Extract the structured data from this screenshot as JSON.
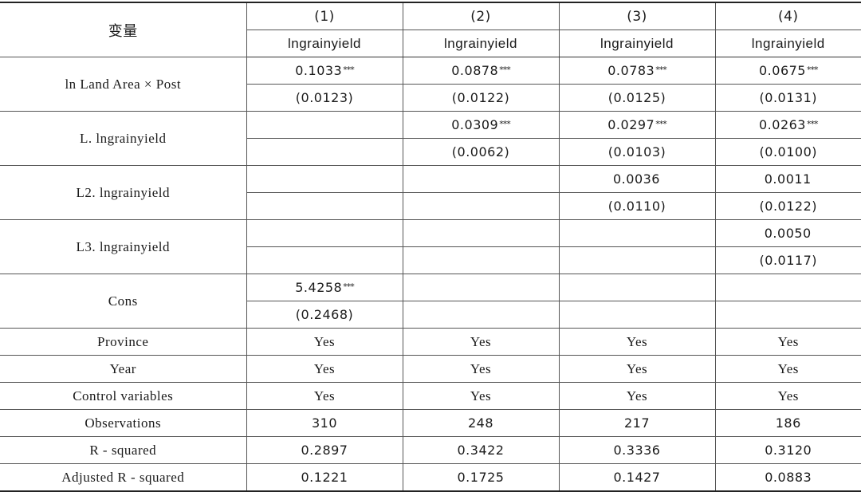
{
  "header": {
    "variable_label": "变量",
    "columns": [
      {
        "number": "(1)",
        "dependent": "lngrainyield"
      },
      {
        "number": "(2)",
        "dependent": "lngrainyield"
      },
      {
        "number": "(3)",
        "dependent": "lngrainyield"
      },
      {
        "number": "(4)",
        "dependent": "lngrainyield"
      }
    ]
  },
  "coefficients": [
    {
      "name": "ln Land Area × Post",
      "coef": [
        {
          "value": "0.1033",
          "stars": "***"
        },
        {
          "value": "0.0878",
          "stars": "***"
        },
        {
          "value": "0.0783",
          "stars": "***"
        },
        {
          "value": "0.0675",
          "stars": "***"
        }
      ],
      "se": [
        "(0.0123)",
        "(0.0122)",
        "(0.0125)",
        "(0.0131)"
      ]
    },
    {
      "name": "L. lngrainyield",
      "coef": [
        {
          "value": "",
          "stars": ""
        },
        {
          "value": "0.0309",
          "stars": "***"
        },
        {
          "value": "0.0297",
          "stars": "***"
        },
        {
          "value": "0.0263",
          "stars": "***"
        }
      ],
      "se": [
        "",
        "(0.0062)",
        "(0.0103)",
        "(0.0100)"
      ]
    },
    {
      "name": "L2. lngrainyield",
      "coef": [
        {
          "value": "",
          "stars": ""
        },
        {
          "value": "",
          "stars": ""
        },
        {
          "value": "0.0036",
          "stars": ""
        },
        {
          "value": "0.0011",
          "stars": ""
        }
      ],
      "se": [
        "",
        "",
        "(0.0110)",
        "(0.0122)"
      ]
    },
    {
      "name": "L3. lngrainyield",
      "coef": [
        {
          "value": "",
          "stars": ""
        },
        {
          "value": "",
          "stars": ""
        },
        {
          "value": "",
          "stars": ""
        },
        {
          "value": "0.0050",
          "stars": ""
        }
      ],
      "se": [
        "",
        "",
        "",
        "(0.0117)"
      ]
    },
    {
      "name": "Cons",
      "coef": [
        {
          "value": "5.4258",
          "stars": "***"
        },
        {
          "value": "",
          "stars": ""
        },
        {
          "value": "",
          "stars": ""
        },
        {
          "value": "",
          "stars": ""
        }
      ],
      "se": [
        "(0.2468)",
        "",
        "",
        ""
      ]
    }
  ],
  "footer_rows": [
    {
      "name": "Province",
      "values": [
        "Yes",
        "Yes",
        "Yes",
        "Yes"
      ]
    },
    {
      "name": "Year",
      "values": [
        "Yes",
        "Yes",
        "Yes",
        "Yes"
      ]
    },
    {
      "name": "Control variables",
      "values": [
        "Yes",
        "Yes",
        "Yes",
        "Yes"
      ]
    },
    {
      "name": "Observations",
      "values": [
        "310",
        "248",
        "217",
        "186"
      ]
    },
    {
      "name": "R - squared",
      "values": [
        "0.2897",
        "0.3422",
        "0.3336",
        "0.3120"
      ]
    },
    {
      "name": "Adjusted R - squared",
      "values": [
        "0.1221",
        "0.1725",
        "0.1427",
        "0.0883"
      ]
    }
  ]
}
